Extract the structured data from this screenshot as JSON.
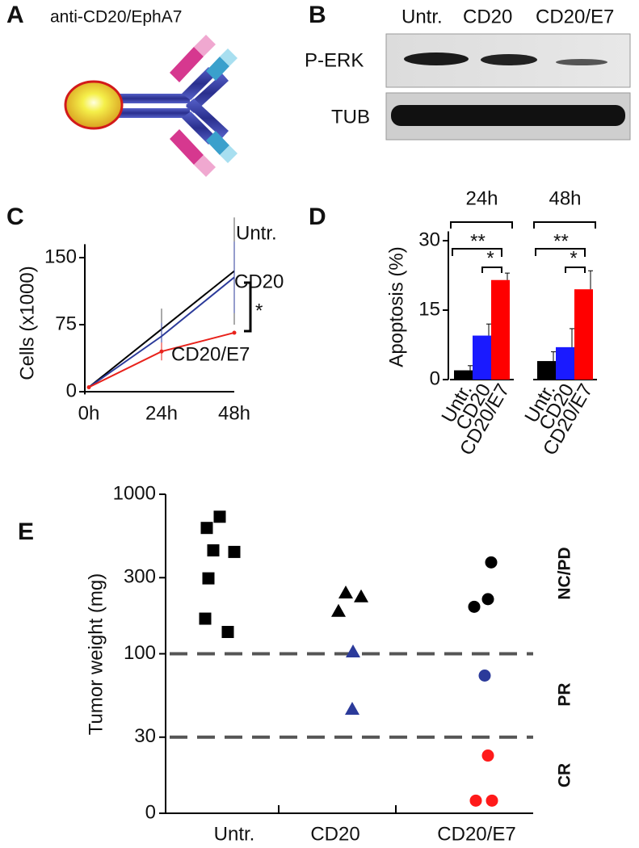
{
  "panel_labels": [
    "A",
    "B",
    "C",
    "D",
    "E"
  ],
  "antibody": {
    "title": "anti-CD20/EphA7"
  },
  "blot": {
    "columns": [
      "Untr.",
      "CD20",
      "CD20/E7"
    ],
    "rows": [
      "P-ERK",
      "TUB"
    ]
  },
  "chart_data": [
    {
      "type": "line",
      "ylabel": "Cells (x1000)",
      "categories": [
        "0h",
        "24h",
        "48h"
      ],
      "ylim": [
        -3,
        165
      ],
      "yticks": [
        0,
        75,
        150
      ],
      "series": [
        {
          "name": "Untr.",
          "color": "#000000",
          "values": [
            5,
            70,
            135
          ],
          "errors": [
            null,
            23,
            60
          ]
        },
        {
          "name": "CD20",
          "color": "#2b3a9a",
          "values": [
            5,
            62,
            128
          ],
          "errors": [
            null,
            15,
            40
          ]
        },
        {
          "name": "CD20/E7",
          "color": "#e8221b",
          "values": [
            5,
            45,
            66
          ],
          "errors": [
            null,
            10,
            null
          ]
        }
      ],
      "annotation": "*"
    },
    {
      "type": "grouped-bar",
      "ylabel": "Apoptosis (%)",
      "groups": [
        "24h",
        "48h"
      ],
      "categories": [
        "Untr.",
        "CD20",
        "CD20/E7"
      ],
      "colors": [
        "#000000",
        "#1a1aff",
        "#ff0000"
      ],
      "values": [
        [
          2,
          9.5,
          21.5
        ],
        [
          4,
          7,
          19.5
        ]
      ],
      "errors": [
        [
          1,
          2.5,
          1.5
        ],
        [
          2,
          4,
          4
        ]
      ],
      "ylim": [
        0,
        32
      ],
      "yticks": [
        0,
        15,
        30
      ],
      "significance": [
        [
          "**",
          "*"
        ],
        [
          "**",
          "*"
        ]
      ]
    },
    {
      "type": "strip",
      "ylabel": "Tumor weight (mg)",
      "log_scale": true,
      "categories": [
        "Untr.",
        "CD20",
        "CD20/E7"
      ],
      "ylim": [
        10,
        1000
      ],
      "yticks": [
        {
          "value": 10,
          "label": "0"
        },
        30,
        100,
        300,
        1000
      ],
      "thresholds": [
        100,
        30
      ],
      "zones": [
        "NC/PD",
        "PR",
        "CR"
      ],
      "points": [
        [
          {
            "value": 615,
            "color": "#000000"
          },
          {
            "value": 723,
            "color": "#000000"
          },
          {
            "value": 445,
            "color": "#000000"
          },
          {
            "value": 435,
            "color": "#000000"
          },
          {
            "value": 297,
            "color": "#000000"
          },
          {
            "value": 166,
            "color": "#000000"
          },
          {
            "value": 137,
            "color": "#000000"
          }
        ],
        [
          {
            "value": 241,
            "color": "#000000"
          },
          {
            "value": 228,
            "color": "#000000"
          },
          {
            "value": 185,
            "color": "#000000"
          },
          {
            "value": 103,
            "color": "#2b3a9a"
          },
          {
            "value": 45,
            "color": "#2b3a9a"
          }
        ],
        [
          {
            "value": 374,
            "color": "#000000"
          },
          {
            "value": 220,
            "color": "#000000"
          },
          {
            "value": 197,
            "color": "#000000"
          },
          {
            "value": 73,
            "color": "#2b3a9a"
          },
          {
            "value": 23,
            "color": "#ff1a1a"
          },
          {
            "value": 12,
            "color": "#ff1a1a"
          },
          {
            "value": 12,
            "color": "#ff1a1a"
          }
        ]
      ],
      "markers": [
        "square",
        "triangle",
        "circle"
      ]
    }
  ]
}
